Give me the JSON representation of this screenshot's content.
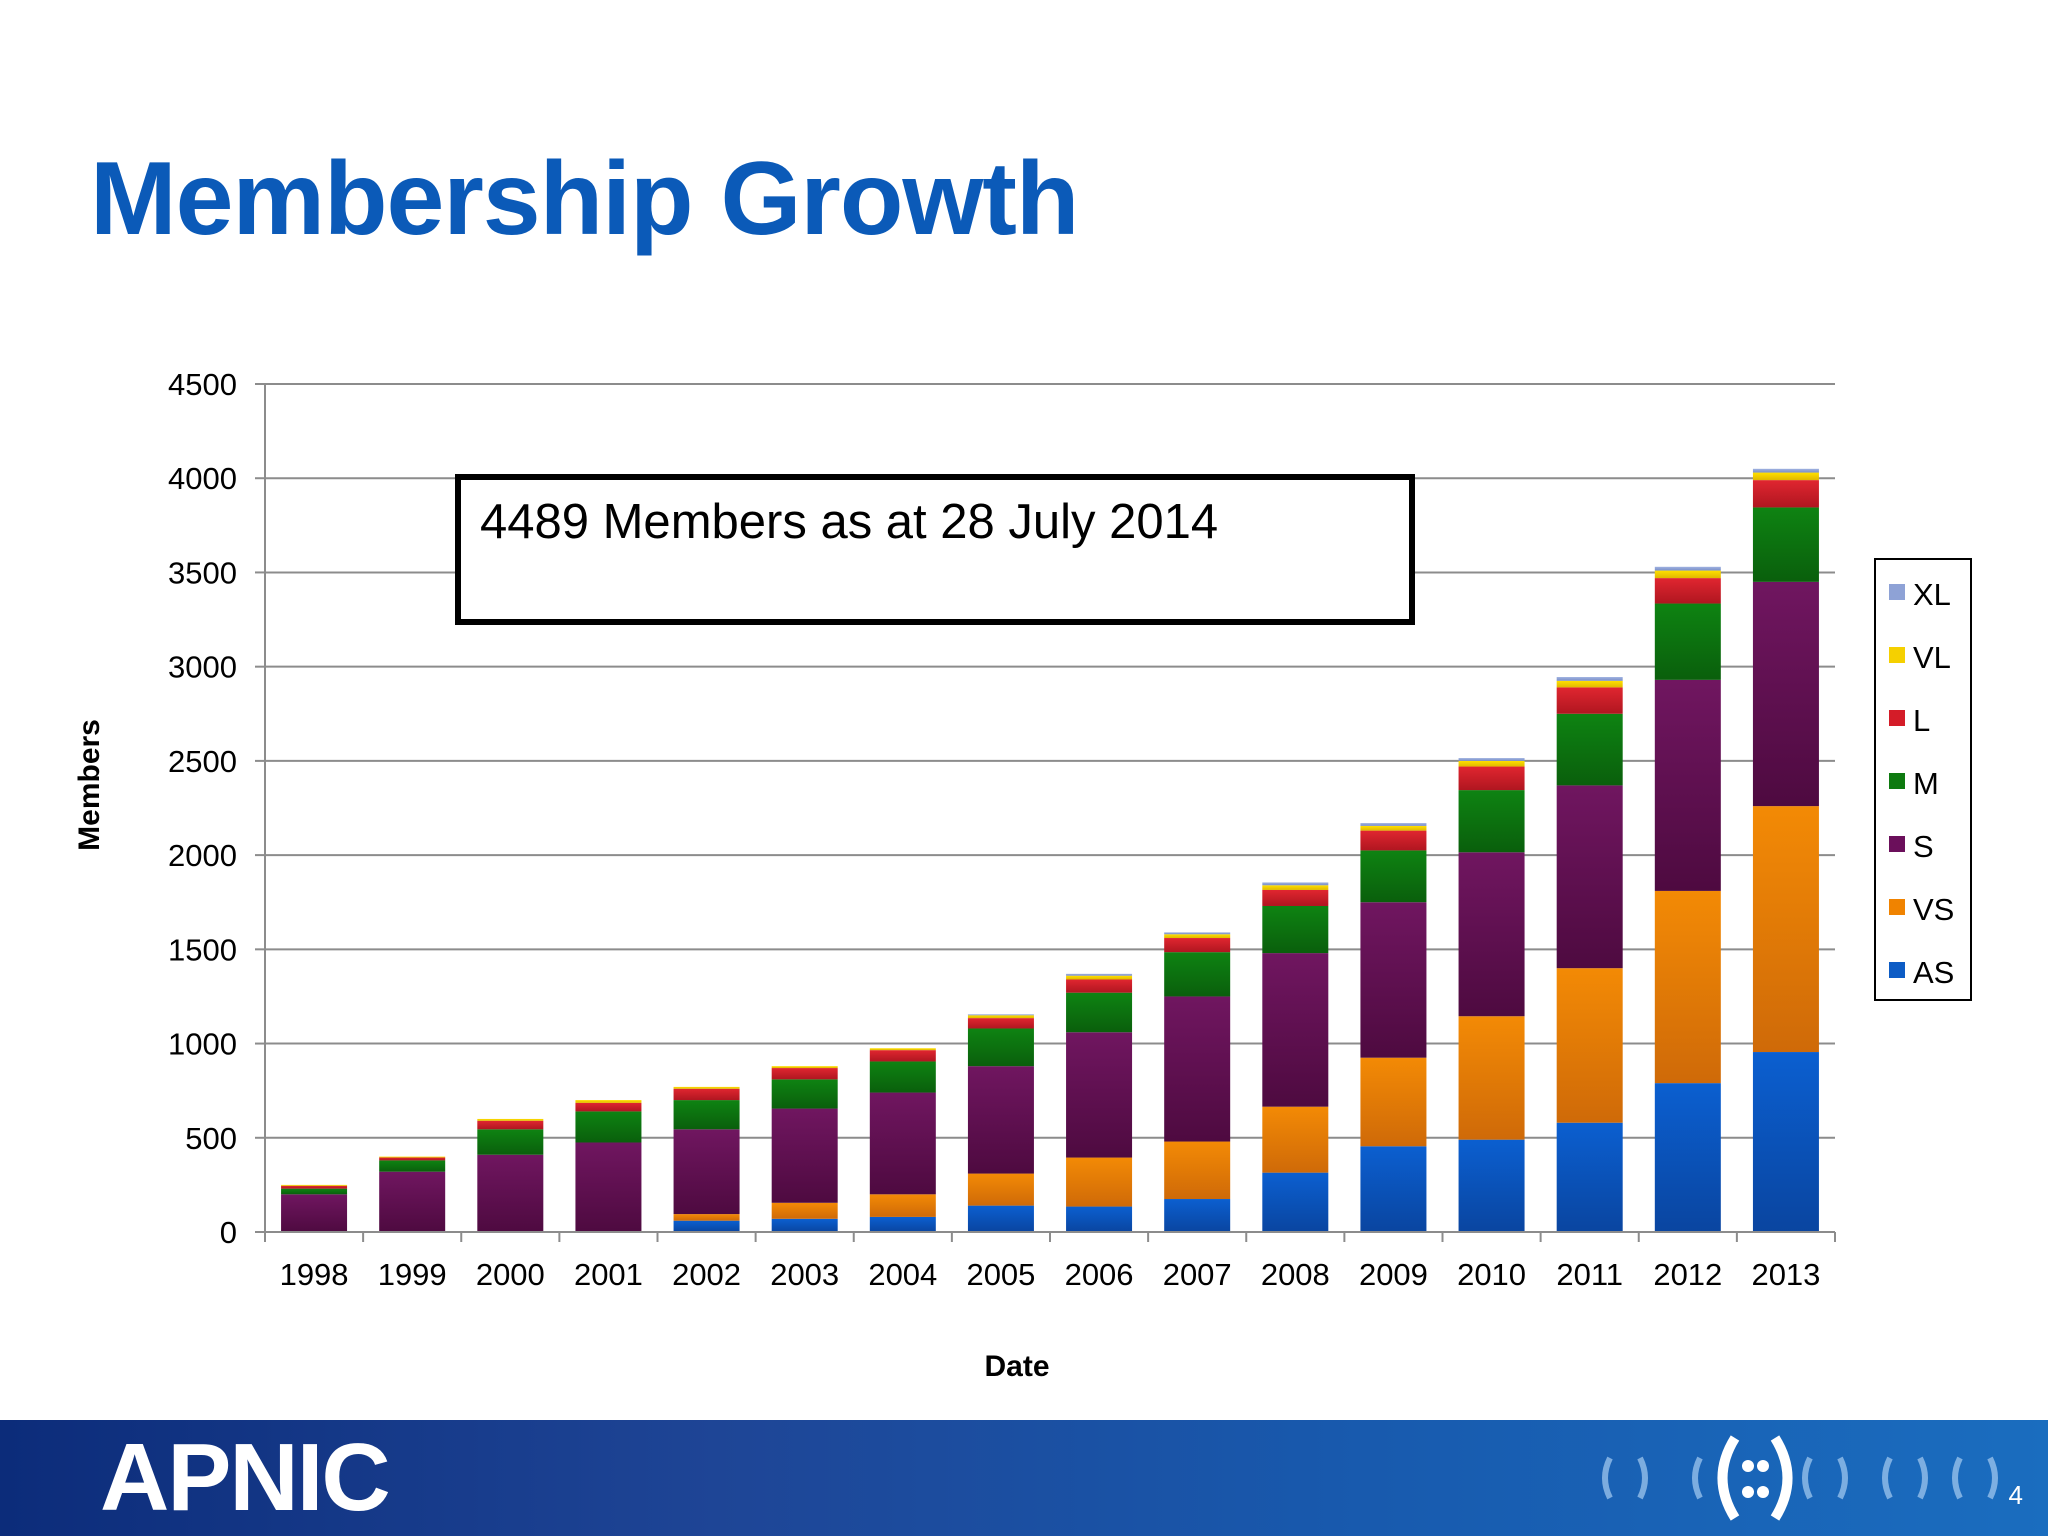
{
  "slide": {
    "title": "Membership Growth",
    "page_number": "4",
    "logo": "APNIC"
  },
  "colors": {
    "title": "#0b5ab8",
    "AS": "#0d5cc5",
    "VS": "#f08300",
    "S": "#6b0f5b",
    "M": "#0e7a10",
    "L": "#d41c28",
    "VL": "#f5d000",
    "XL": "#8ea2d6"
  },
  "chart_data": {
    "type": "bar",
    "stacked": true,
    "title": "",
    "xlabel": "Date",
    "ylabel": "Members",
    "ylim": [
      0,
      4500
    ],
    "yticks": [
      0,
      500,
      1000,
      1500,
      2000,
      2500,
      3000,
      3500,
      4000,
      4500
    ],
    "grid": true,
    "legend_position": "right",
    "categories": [
      "1998",
      "1999",
      "2000",
      "2001",
      "2002",
      "2003",
      "2004",
      "2005",
      "2006",
      "2007",
      "2008",
      "2009",
      "2010",
      "2011",
      "2012",
      "2013"
    ],
    "series": [
      {
        "name": "AS",
        "values": [
          0,
          0,
          0,
          0,
          60,
          70,
          80,
          140,
          135,
          175,
          315,
          455,
          490,
          580,
          790,
          955
        ]
      },
      {
        "name": "VS",
        "values": [
          0,
          0,
          0,
          0,
          35,
          85,
          120,
          170,
          260,
          305,
          350,
          470,
          655,
          820,
          1020,
          1305
        ]
      },
      {
        "name": "S",
        "values": [
          200,
          320,
          410,
          475,
          450,
          500,
          540,
          570,
          665,
          770,
          815,
          825,
          870,
          970,
          1120,
          1190
        ]
      },
      {
        "name": "M",
        "values": [
          30,
          60,
          135,
          165,
          155,
          155,
          165,
          200,
          210,
          235,
          250,
          275,
          330,
          380,
          405,
          395
        ]
      },
      {
        "name": "L",
        "values": [
          15,
          15,
          45,
          45,
          60,
          60,
          60,
          55,
          70,
          75,
          85,
          105,
          125,
          140,
          135,
          145
        ]
      },
      {
        "name": "VL",
        "values": [
          5,
          5,
          10,
          15,
          10,
          10,
          10,
          15,
          20,
          20,
          25,
          25,
          30,
          35,
          40,
          40
        ]
      },
      {
        "name": "XL",
        "values": [
          0,
          0,
          0,
          0,
          0,
          0,
          0,
          5,
          10,
          10,
          15,
          15,
          15,
          20,
          20,
          20
        ]
      }
    ],
    "legend_order": [
      "XL",
      "VL",
      "L",
      "M",
      "S",
      "VS",
      "AS"
    ],
    "annotation": "4489 Members as at 28 July 2014"
  }
}
